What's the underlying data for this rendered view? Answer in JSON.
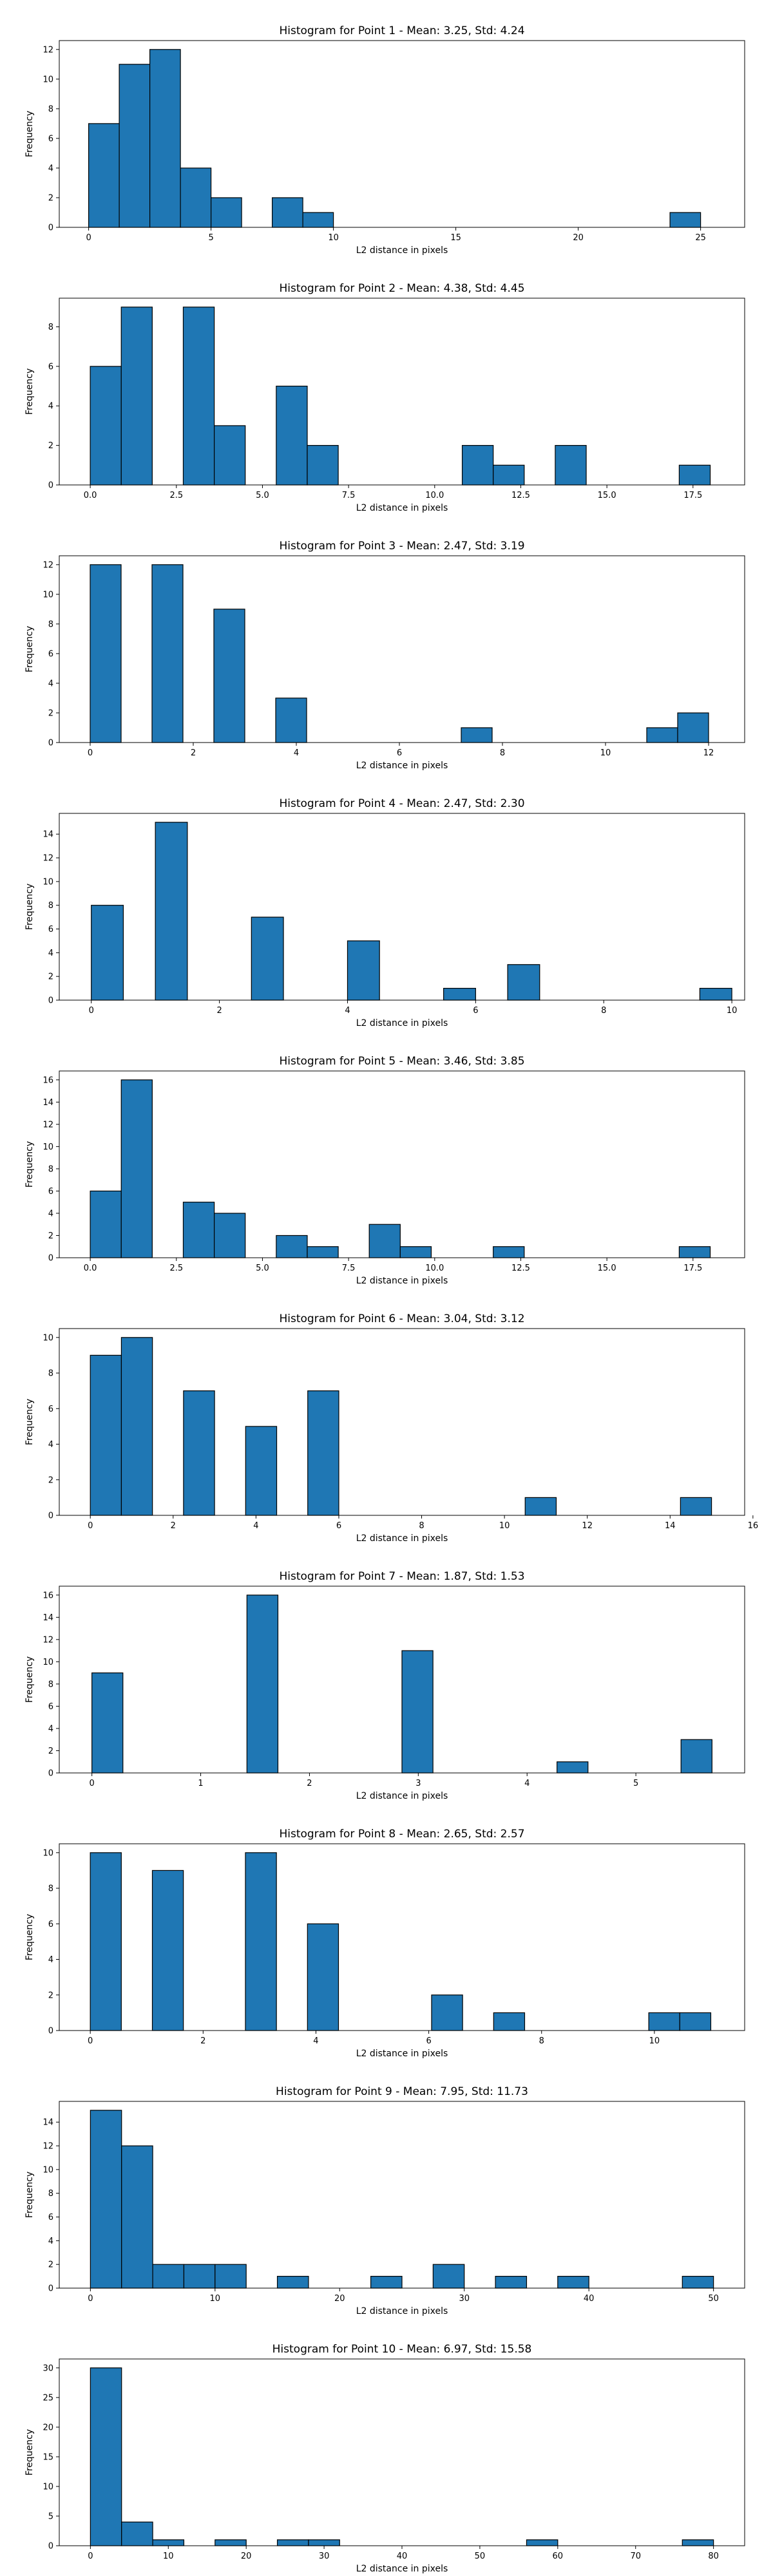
{
  "chart_data": [
    {
      "type": "bar",
      "title": "Histogram for Point 1 - Mean: 3.25, Std: 4.24",
      "xlabel": "L2 distance in pixels",
      "ylabel": "Frequency",
      "xlim": [
        -1.2,
        26.8
      ],
      "ylim": [
        0,
        12.6
      ],
      "xticks": [
        0,
        5,
        10,
        15,
        20,
        25
      ],
      "xtick_labels": [
        "0",
        "5",
        "10",
        "15",
        "20",
        "25"
      ],
      "yticks": [
        0,
        2,
        4,
        6,
        8,
        10,
        12
      ],
      "bin_edges": [
        0.0,
        1.25,
        2.5,
        3.75,
        5.0,
        6.25,
        7.5,
        8.75,
        10.0,
        11.25,
        12.5,
        13.75,
        15.0,
        16.25,
        17.5,
        18.75,
        20.0,
        21.25,
        22.5,
        23.75,
        25.0
      ],
      "counts": [
        7,
        11,
        12,
        4,
        2,
        0,
        2,
        1,
        0,
        0,
        0,
        0,
        0,
        0,
        0,
        0,
        0,
        0,
        0,
        1
      ],
      "color": "#1f77b4",
      "edgecolor": "#000000",
      "grid": false
    },
    {
      "type": "bar",
      "title": "Histogram for Point 2 - Mean: 4.38, Std: 4.45",
      "xlabel": "L2 distance in pixels",
      "ylabel": "Frequency",
      "xlim": [
        -0.9,
        19.0
      ],
      "ylim": [
        0,
        9.45
      ],
      "xticks": [
        0,
        2.5,
        5,
        7.5,
        10,
        12.5,
        15,
        17.5
      ],
      "xtick_labels": [
        "0.0",
        "2.5",
        "5.0",
        "7.5",
        "10.0",
        "12.5",
        "15.0",
        "17.5"
      ],
      "yticks": [
        0,
        2,
        4,
        6,
        8
      ],
      "bin_edges": [
        0.0,
        0.9,
        1.8,
        2.7,
        3.6,
        4.5,
        5.4,
        6.3,
        7.2,
        8.1,
        9.0,
        9.9,
        10.8,
        11.7,
        12.6,
        13.5,
        14.4,
        15.3,
        16.2,
        17.1,
        18.0
      ],
      "counts": [
        6,
        9,
        0,
        9,
        3,
        0,
        5,
        2,
        0,
        0,
        0,
        0,
        2,
        1,
        0,
        2,
        0,
        0,
        0,
        1
      ],
      "color": "#1f77b4",
      "edgecolor": "#000000",
      "grid": false
    },
    {
      "type": "bar",
      "title": "Histogram for Point 3 - Mean: 2.47, Std: 3.19",
      "xlabel": "L2 distance in pixels",
      "ylabel": "Frequency",
      "xlim": [
        -0.6,
        12.7
      ],
      "ylim": [
        0,
        12.6
      ],
      "xticks": [
        0,
        2,
        4,
        6,
        8,
        10,
        12
      ],
      "xtick_labels": [
        "0",
        "2",
        "4",
        "6",
        "8",
        "10",
        "12"
      ],
      "yticks": [
        0,
        2,
        4,
        6,
        8,
        10,
        12
      ],
      "bin_edges": [
        0.0,
        0.6,
        1.2,
        1.8,
        2.4,
        3.0,
        3.6,
        4.2,
        4.8,
        5.4,
        6.0,
        6.6,
        7.2,
        7.8,
        8.4,
        9.0,
        9.6,
        10.2,
        10.8,
        11.4,
        12.0
      ],
      "counts": [
        12,
        0,
        12,
        0,
        9,
        0,
        3,
        0,
        0,
        0,
        0,
        0,
        1,
        0,
        0,
        0,
        0,
        0,
        1,
        2
      ],
      "color": "#1f77b4",
      "edgecolor": "#000000",
      "grid": false
    },
    {
      "type": "bar",
      "title": "Histogram for Point 4 - Mean: 2.47, Std: 2.30",
      "xlabel": "L2 distance in pixels",
      "ylabel": "Frequency",
      "xlim": [
        -0.5,
        10.2
      ],
      "ylim": [
        0,
        15.75
      ],
      "xticks": [
        0,
        2,
        4,
        6,
        8,
        10
      ],
      "xtick_labels": [
        "0",
        "2",
        "4",
        "6",
        "8",
        "10"
      ],
      "yticks": [
        0,
        2,
        4,
        6,
        8,
        10,
        12,
        14
      ],
      "bin_edges": [
        0.0,
        0.5,
        1.0,
        1.5,
        2.0,
        2.5,
        3.0,
        3.5,
        4.0,
        4.5,
        5.0,
        5.5,
        6.0,
        6.5,
        7.0,
        7.5,
        8.0,
        8.5,
        9.0,
        9.5,
        10.0
      ],
      "counts": [
        8,
        0,
        15,
        0,
        0,
        7,
        0,
        0,
        5,
        0,
        0,
        1,
        0,
        3,
        0,
        0,
        0,
        0,
        0,
        1
      ],
      "color": "#1f77b4",
      "edgecolor": "#000000",
      "grid": false
    },
    {
      "type": "bar",
      "title": "Histogram for Point 5 - Mean: 3.46, Std: 3.85",
      "xlabel": "L2 distance in pixels",
      "ylabel": "Frequency",
      "xlim": [
        -0.9,
        19.0
      ],
      "ylim": [
        0,
        16.8
      ],
      "xticks": [
        0,
        2.5,
        5,
        7.5,
        10,
        12.5,
        15,
        17.5
      ],
      "xtick_labels": [
        "0.0",
        "2.5",
        "5.0",
        "7.5",
        "10.0",
        "12.5",
        "15.0",
        "17.5"
      ],
      "yticks": [
        0,
        2,
        4,
        6,
        8,
        10,
        12,
        14,
        16
      ],
      "bin_edges": [
        0.0,
        0.9,
        1.8,
        2.7,
        3.6,
        4.5,
        5.4,
        6.3,
        7.2,
        8.1,
        9.0,
        9.9,
        10.8,
        11.7,
        12.6,
        13.5,
        14.4,
        15.3,
        16.2,
        17.1,
        18.0
      ],
      "counts": [
        6,
        16,
        0,
        5,
        4,
        0,
        2,
        1,
        0,
        3,
        1,
        0,
        0,
        1,
        0,
        0,
        0,
        0,
        0,
        1
      ],
      "color": "#1f77b4",
      "edgecolor": "#000000",
      "grid": false
    },
    {
      "type": "bar",
      "title": "Histogram for Point 6 - Mean: 3.04, Std: 3.12",
      "xlabel": "L2 distance in pixels",
      "ylabel": "Frequency",
      "xlim": [
        -0.75,
        15.8
      ],
      "ylim": [
        0,
        10.5
      ],
      "xticks": [
        0,
        2,
        4,
        6,
        8,
        10,
        12,
        14,
        16
      ],
      "xtick_labels": [
        "0",
        "2",
        "4",
        "6",
        "8",
        "10",
        "12",
        "14",
        "16"
      ],
      "yticks": [
        0,
        2,
        4,
        6,
        8,
        10
      ],
      "bin_edges": [
        0.0,
        0.75,
        1.5,
        2.25,
        3.0,
        3.75,
        4.5,
        5.25,
        6.0,
        6.75,
        7.5,
        8.25,
        9.0,
        9.75,
        10.5,
        11.25,
        12.0,
        12.75,
        13.5,
        14.25,
        15.0
      ],
      "counts": [
        9,
        10,
        0,
        7,
        0,
        5,
        0,
        7,
        0,
        0,
        0,
        0,
        0,
        0,
        1,
        0,
        0,
        0,
        0,
        1
      ],
      "color": "#1f77b4",
      "edgecolor": "#000000",
      "grid": false
    },
    {
      "type": "bar",
      "title": "Histogram for Point 7 - Mean: 1.87, Std: 1.53",
      "xlabel": "L2 distance in pixels",
      "ylabel": "Frequency",
      "xlim": [
        -0.3,
        6.0
      ],
      "ylim": [
        0,
        16.8
      ],
      "xticks": [
        0,
        1,
        2,
        3,
        4,
        5
      ],
      "xtick_labels": [
        "0",
        "1",
        "2",
        "3",
        "4",
        "5"
      ],
      "yticks": [
        0,
        2,
        4,
        6,
        8,
        10,
        12,
        14,
        16
      ],
      "bin_edges": [
        0.0,
        0.285,
        0.57,
        0.855,
        1.14,
        1.425,
        1.71,
        1.995,
        2.28,
        2.565,
        2.85,
        3.135,
        3.42,
        3.705,
        3.99,
        4.275,
        4.56,
        4.845,
        5.13,
        5.415,
        5.7
      ],
      "counts": [
        9,
        0,
        0,
        0,
        0,
        16,
        0,
        0,
        0,
        0,
        11,
        0,
        0,
        0,
        0,
        1,
        0,
        0,
        0,
        3
      ],
      "color": "#1f77b4",
      "edgecolor": "#000000",
      "grid": false
    },
    {
      "type": "bar",
      "title": "Histogram for Point 8 - Mean: 2.65, Std: 2.57",
      "xlabel": "L2 distance in pixels",
      "ylabel": "Frequency",
      "xlim": [
        -0.55,
        11.6
      ],
      "ylim": [
        0,
        10.5
      ],
      "xticks": [
        0,
        2,
        4,
        6,
        8,
        10
      ],
      "xtick_labels": [
        "0",
        "2",
        "4",
        "6",
        "8",
        "10"
      ],
      "yticks": [
        0,
        2,
        4,
        6,
        8,
        10
      ],
      "bin_edges": [
        0.0,
        0.55,
        1.1,
        1.65,
        2.2,
        2.75,
        3.3,
        3.85,
        4.4,
        4.95,
        5.5,
        6.05,
        6.6,
        7.15,
        7.7,
        8.25,
        8.8,
        9.35,
        9.9,
        10.45,
        11.0
      ],
      "counts": [
        10,
        0,
        9,
        0,
        0,
        10,
        0,
        6,
        0,
        0,
        0,
        2,
        0,
        1,
        0,
        0,
        0,
        0,
        1,
        1
      ],
      "color": "#1f77b4",
      "edgecolor": "#000000",
      "grid": false
    },
    {
      "type": "bar",
      "title": "Histogram for Point 9 - Mean: 7.95, Std: 11.73",
      "xlabel": "L2 distance in pixels",
      "ylabel": "Frequency",
      "xlim": [
        -2.5,
        52.5
      ],
      "ylim": [
        0,
        15.75
      ],
      "xticks": [
        0,
        10,
        20,
        30,
        40,
        50
      ],
      "xtick_labels": [
        "0",
        "10",
        "20",
        "30",
        "40",
        "50"
      ],
      "yticks": [
        0,
        2,
        4,
        6,
        8,
        10,
        12,
        14
      ],
      "bin_edges": [
        0.0,
        2.5,
        5.0,
        7.5,
        10.0,
        12.5,
        15.0,
        17.5,
        20.0,
        22.5,
        25.0,
        27.5,
        30.0,
        32.5,
        35.0,
        37.5,
        40.0,
        42.5,
        45.0,
        47.5,
        50.0
      ],
      "counts": [
        15,
        12,
        2,
        2,
        2,
        0,
        1,
        0,
        0,
        1,
        0,
        2,
        0,
        1,
        0,
        1,
        0,
        0,
        0,
        1
      ],
      "color": "#1f77b4",
      "edgecolor": "#000000",
      "grid": false
    },
    {
      "type": "bar",
      "title": "Histogram for Point 10 - Mean: 6.97, Std: 15.58",
      "xlabel": "L2 distance in pixels",
      "ylabel": "Frequency",
      "xlim": [
        -4.0,
        84.0
      ],
      "ylim": [
        0,
        31.5
      ],
      "xticks": [
        0,
        10,
        20,
        30,
        40,
        50,
        60,
        70,
        80
      ],
      "xtick_labels": [
        "0",
        "10",
        "20",
        "30",
        "40",
        "50",
        "60",
        "70",
        "80"
      ],
      "yticks": [
        0,
        5,
        10,
        15,
        20,
        25,
        30
      ],
      "bin_edges": [
        0.0,
        4.0,
        8.0,
        12.0,
        16.0,
        20.0,
        24.0,
        28.0,
        32.0,
        36.0,
        40.0,
        44.0,
        48.0,
        52.0,
        56.0,
        60.0,
        64.0,
        68.0,
        72.0,
        76.0,
        80.0
      ],
      "counts": [
        30,
        4,
        1,
        0,
        1,
        0,
        1,
        1,
        0,
        0,
        0,
        0,
        0,
        0,
        1,
        0,
        0,
        0,
        0,
        1
      ],
      "color": "#1f77b4",
      "edgecolor": "#000000",
      "grid": false
    }
  ]
}
